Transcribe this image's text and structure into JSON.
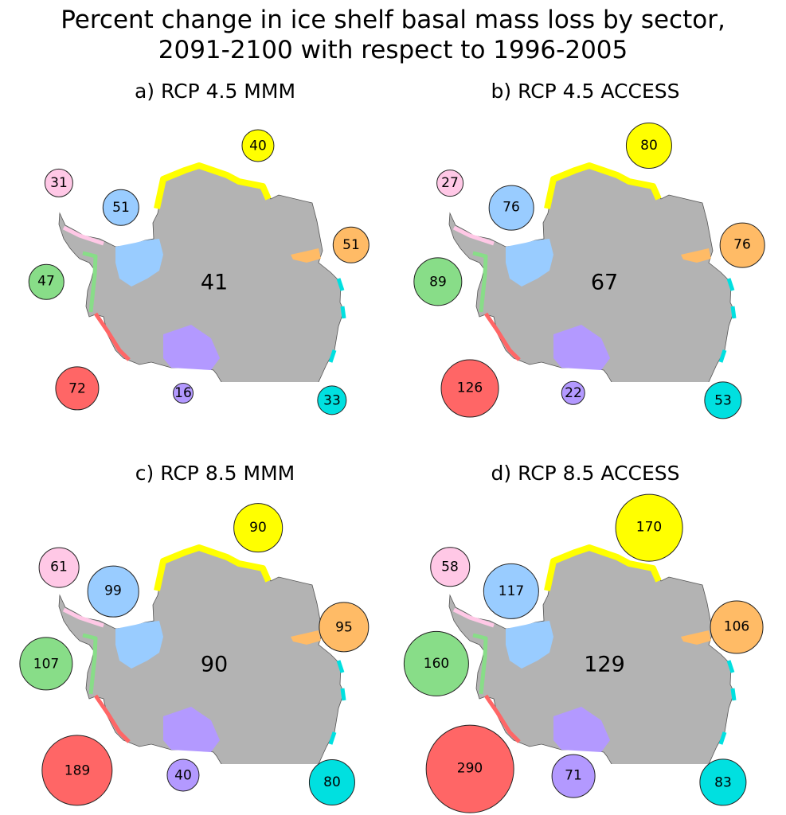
{
  "title": {
    "line1": "Percent change in ice shelf basal mass loss by sector,",
    "line2": "2091-2100 with respect to 1996-2005"
  },
  "colors": {
    "land": "#b3b3b3",
    "yellow": "#ffff00",
    "pink": "#ffc8e6",
    "blue": "#99ccff",
    "orange": "#ffbb66",
    "green": "#88dd88",
    "red": "#ff6666",
    "purple": "#b399ff",
    "cyan": "#00e0e0"
  },
  "panels": [
    {
      "title": "a) RCP 4.5 MMM",
      "total": "41",
      "sectors": {
        "yellow": 40,
        "pink": 31,
        "blue": 51,
        "orange": 51,
        "green": 47,
        "red": 72,
        "purple": 16,
        "cyan": 33
      }
    },
    {
      "title": "b) RCP 4.5 ACCESS",
      "total": "67",
      "sectors": {
        "yellow": 80,
        "pink": 27,
        "blue": 76,
        "orange": 76,
        "green": 89,
        "red": 126,
        "purple": 22,
        "cyan": 53
      }
    },
    {
      "title": "c) RCP 8.5 MMM",
      "total": "90",
      "sectors": {
        "yellow": 90,
        "pink": 61,
        "blue": 99,
        "orange": 95,
        "green": 107,
        "red": 189,
        "purple": 40,
        "cyan": 80
      }
    },
    {
      "title": "d) RCP 8.5 ACCESS",
      "total": "129",
      "sectors": {
        "yellow": 170,
        "pink": 58,
        "blue": 117,
        "orange": 106,
        "green": 160,
        "red": 290,
        "purple": 71,
        "cyan": 83
      }
    }
  ]
}
